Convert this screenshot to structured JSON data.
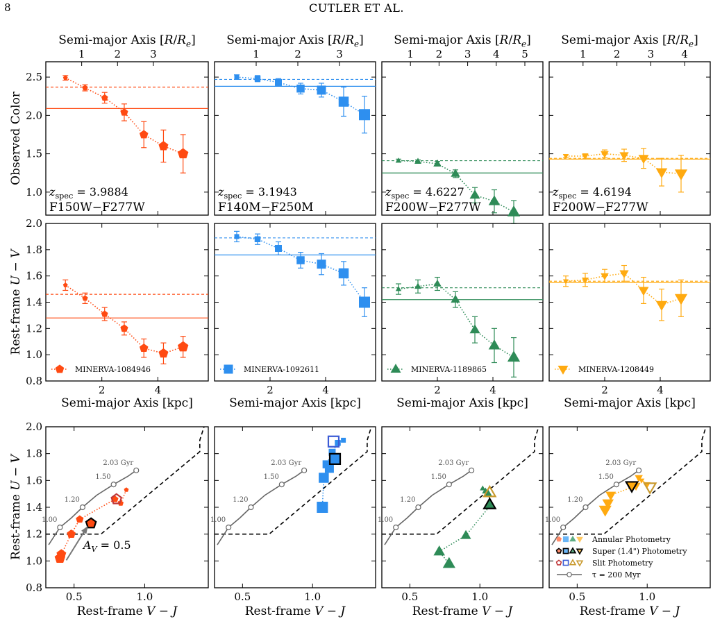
{
  "header": {
    "page_number": "8",
    "running_title": "CUTLER ET AL."
  },
  "top_axis_label": "Semi-major Axis [R/Rₑ]",
  "bottom_axis_label_row2": "Semi-major Axis [kpc]",
  "row_ylabels": [
    "Observed Color",
    "Rest-frame U − V",
    "Rest-frame U − V"
  ],
  "ccd_xlabel": "Rest-frame V − J",
  "colors": {
    "c1": "#ff4a12",
    "c2": "#2e8fef",
    "c3": "#2e8b57",
    "c4": "#ffaa10",
    "c1b": "#c0393b",
    "c2b": "#3b5bd5",
    "c4b": "#c99a2e",
    "track": "#666666"
  },
  "columns": [
    {
      "galaxy": "MINERVA-1084946",
      "zspec": "3.9884",
      "filters": "F150W−F277W",
      "marker": "pentagon",
      "color": "#ff4a12",
      "top_ticks": [
        "1",
        "2",
        "3"
      ],
      "top_tick_kpc": [
        1.28,
        2.56,
        3.84
      ],
      "obs": {
        "x": [
          0.7,
          1.4,
          2.1,
          2.8,
          3.5,
          4.2,
          4.9
        ],
        "y": [
          2.49,
          2.36,
          2.23,
          2.04,
          1.75,
          1.6,
          1.5
        ],
        "err": [
          0.03,
          0.04,
          0.07,
          0.11,
          0.17,
          0.21,
          0.25
        ],
        "size": [
          4,
          5,
          6,
          7,
          8,
          9,
          10
        ],
        "dashed_line": 2.37,
        "solid_line": 2.09
      },
      "uv": {
        "x": [
          0.7,
          1.4,
          2.1,
          2.8,
          3.5,
          4.2,
          4.9
        ],
        "y": [
          1.53,
          1.43,
          1.31,
          1.2,
          1.05,
          1.01,
          1.06
        ],
        "err": [
          0.04,
          0.04,
          0.05,
          0.05,
          0.07,
          0.08,
          0.08
        ],
        "size": [
          4,
          5,
          6,
          7,
          8,
          9,
          10
        ],
        "dashed_line": 1.46,
        "solid_line": 1.28
      },
      "ccd": {
        "vj": [
          0.87,
          0.83,
          0.79,
          0.54,
          0.48,
          0.41,
          0.4
        ],
        "uv": [
          1.53,
          1.43,
          1.46,
          1.31,
          1.2,
          1.05,
          1.02
        ],
        "size": [
          4,
          5,
          6,
          7,
          8,
          9,
          10
        ],
        "super": {
          "vj": 0.62,
          "uv": 1.28
        },
        "slit": {
          "vj": 0.8,
          "uv": 1.46
        }
      },
      "arrow_label": "A_V = 0.5"
    },
    {
      "galaxy": "MINERVA-1092611",
      "zspec": "3.1943",
      "filters": "F140M−F250M",
      "marker": "square",
      "color": "#2e8fef",
      "top_ticks": [
        "1",
        "2",
        "3"
      ],
      "top_tick_kpc": [
        1.5,
        3.0,
        4.5
      ],
      "obs": {
        "x": [
          0.8,
          1.55,
          2.3,
          3.1,
          3.85,
          4.65,
          5.4
        ],
        "y": [
          2.5,
          2.48,
          2.43,
          2.35,
          2.33,
          2.18,
          2.01
        ],
        "err": [
          0.03,
          0.04,
          0.05,
          0.07,
          0.09,
          0.19,
          0.24
        ],
        "size": [
          4,
          5,
          6,
          7,
          8,
          9,
          10
        ],
        "dashed_line": 2.47,
        "solid_line": 2.38
      },
      "uv": {
        "x": [
          0.8,
          1.55,
          2.3,
          3.1,
          3.85,
          4.65,
          5.4
        ],
        "y": [
          1.9,
          1.88,
          1.81,
          1.72,
          1.69,
          1.62,
          1.4
        ],
        "err": [
          0.04,
          0.04,
          0.05,
          0.06,
          0.08,
          0.09,
          0.11
        ],
        "size": [
          4,
          5,
          6,
          7,
          8,
          9,
          10
        ],
        "dashed_line": 1.89,
        "solid_line": 1.76
      },
      "ccd": {
        "vj": [
          1.22,
          1.18,
          1.14,
          1.1,
          1.12,
          1.08,
          1.07
        ],
        "uv": [
          1.9,
          1.88,
          1.81,
          1.72,
          1.69,
          1.62,
          1.4
        ],
        "size": [
          4,
          5,
          6,
          7,
          8,
          9,
          10
        ],
        "super": {
          "vj": 1.16,
          "uv": 1.76
        },
        "slit": {
          "vj": 1.15,
          "uv": 1.89
        }
      }
    },
    {
      "galaxy": "MINERVA-1189865",
      "zspec": "4.6227",
      "filters": "F200W−F277W",
      "marker": "triangle-up",
      "color": "#2e8b57",
      "top_ticks": [
        "1",
        "2",
        "3",
        "4",
        "5"
      ],
      "top_tick_kpc": [
        1.03,
        2.06,
        3.09,
        4.12,
        5.15
      ],
      "obs": {
        "x": [
          0.6,
          1.3,
          2.0,
          2.65,
          3.35,
          4.05,
          4.75
        ],
        "y": [
          1.41,
          1.4,
          1.37,
          1.24,
          0.96,
          0.88,
          0.74
        ],
        "err": [
          0.02,
          0.02,
          0.03,
          0.05,
          0.1,
          0.15,
          0.15
        ],
        "size": [
          4,
          5,
          6,
          7,
          8,
          9,
          10
        ],
        "dashed_line": 1.41,
        "solid_line": 1.25
      },
      "uv": {
        "x": [
          0.6,
          1.3,
          2.0,
          2.65,
          3.35,
          4.05,
          4.75
        ],
        "y": [
          1.5,
          1.52,
          1.54,
          1.42,
          1.19,
          1.07,
          0.98
        ],
        "err": [
          0.04,
          0.05,
          0.05,
          0.06,
          0.1,
          0.13,
          0.15
        ],
        "size": [
          4,
          5,
          6,
          7,
          8,
          9,
          10
        ],
        "dashed_line": 1.51,
        "solid_line": 1.42
      },
      "ccd": {
        "vj": [
          1.02,
          1.04,
          1.06,
          1.08,
          0.9,
          0.71,
          0.78
        ],
        "uv": [
          1.54,
          1.52,
          1.5,
          1.42,
          1.19,
          1.07,
          0.98
        ],
        "size": [
          4,
          5,
          6,
          7,
          8,
          9,
          10
        ],
        "super": {
          "vj": 1.07,
          "uv": 1.42
        },
        "slit": {
          "vj": 1.07,
          "uv": 1.51
        }
      }
    },
    {
      "galaxy": "MINERVA-1208449",
      "zspec": "4.6194",
      "filters": "F200W−F277W",
      "marker": "triangle-down",
      "color": "#ffaa10",
      "top_ticks": [
        "1",
        "2",
        "3",
        "4"
      ],
      "top_tick_kpc": [
        1.22,
        2.44,
        3.66,
        4.88
      ],
      "obs": {
        "x": [
          0.6,
          1.3,
          2.0,
          2.7,
          3.4,
          4.05,
          4.75
        ],
        "y": [
          1.47,
          1.47,
          1.5,
          1.48,
          1.44,
          1.26,
          1.24
        ],
        "err": [
          0.02,
          0.03,
          0.05,
          0.08,
          0.13,
          0.18,
          0.24
        ],
        "size": [
          4,
          5,
          6,
          7,
          8,
          9,
          10
        ],
        "dashed_line": 1.44,
        "solid_line": 1.43
      },
      "uv": {
        "x": [
          0.6,
          1.3,
          2.0,
          2.7,
          3.4,
          4.05,
          4.75
        ],
        "y": [
          1.56,
          1.57,
          1.6,
          1.62,
          1.49,
          1.38,
          1.43
        ],
        "err": [
          0.04,
          0.05,
          0.05,
          0.06,
          0.1,
          0.12,
          0.14
        ],
        "size": [
          4,
          5,
          6,
          7,
          8,
          9,
          10
        ],
        "dashed_line": 1.56,
        "solid_line": 1.55
      },
      "ccd": {
        "vj": [
          0.96,
          1.0,
          0.94,
          0.92,
          0.74,
          0.72,
          0.7
        ],
        "uv": [
          1.6,
          1.57,
          1.62,
          1.56,
          1.49,
          1.43,
          1.38
        ],
        "size": [
          4,
          5,
          6,
          7,
          8,
          9,
          10
        ],
        "super": {
          "vj": 0.89,
          "uv": 1.56
        },
        "slit": {
          "vj": 1.02,
          "uv": 1.55
        }
      }
    }
  ],
  "chart_data": {
    "type": "scatter",
    "row1": {
      "ylabel": "Observed Color",
      "ylim": [
        0.7,
        2.7
      ],
      "yticks": [
        1.0,
        1.5,
        2.0,
        2.5
      ],
      "xlim": [
        0,
        5.8
      ]
    },
    "row2": {
      "ylabel": "Rest-frame U − V",
      "xlabel": "Semi-major Axis [kpc]",
      "ylim": [
        0.8,
        2.0
      ],
      "yticks": [
        0.8,
        1.0,
        1.2,
        1.4,
        1.6,
        1.8,
        2.0
      ],
      "xticks": [
        2,
        4
      ],
      "xlim": [
        0,
        5.8
      ]
    },
    "row3": {
      "ylabel": "Rest-frame U − V",
      "xlabel": "Rest-frame V − J",
      "ylim": [
        0.8,
        2.0
      ],
      "yticks": [
        0.8,
        1.0,
        1.2,
        1.4,
        1.6,
        1.8,
        2.0
      ],
      "xticks": [
        0.5,
        1.0
      ],
      "xlim": [
        0.3,
        1.45
      ]
    },
    "quiescent_boundary": {
      "vj": [
        0.3,
        0.69,
        1.39,
        1.39,
        1.42
      ],
      "uv": [
        1.2,
        1.2,
        1.815,
        1.9,
        2.0
      ]
    },
    "tau_track": {
      "name": "τ = 200 Myr",
      "vj": [
        0.32,
        0.4,
        0.48,
        0.56,
        0.66,
        0.78,
        0.88,
        0.94
      ],
      "uv": [
        1.12,
        1.25,
        1.32,
        1.4,
        1.49,
        1.57,
        1.63,
        1.675
      ],
      "age_markers": [
        {
          "label": "1.00",
          "vj": 0.4,
          "uv": 1.25
        },
        {
          "label": "1.20",
          "vj": 0.56,
          "uv": 1.4
        },
        {
          "label": "1.50",
          "vj": 0.78,
          "uv": 1.57
        },
        {
          "label": "2.03 Gyr",
          "vj": 0.94,
          "uv": 1.675
        }
      ]
    },
    "legend": [
      {
        "label": "Annular Photometry"
      },
      {
        "label": "Super (1.4\") Photometry"
      },
      {
        "label": "Slit Photometry"
      },
      {
        "label": "τ = 200 Myr"
      }
    ]
  }
}
